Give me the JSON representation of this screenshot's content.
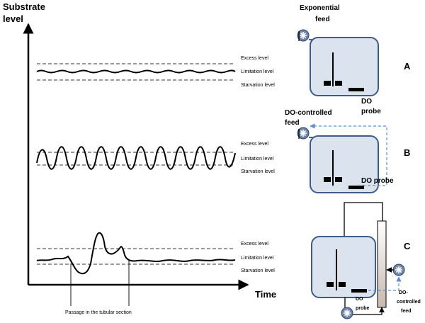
{
  "axes": {
    "y_label_line1": "Substrate",
    "y_label_line2": "level",
    "x_label": "Time",
    "passage_label": "Passage in the tubular section"
  },
  "levels": {
    "excess": "Excess level",
    "limitation": "Limitation level",
    "starvation": "Starvation level"
  },
  "panels": {
    "a": {
      "letter": "A",
      "feed_line1": "Exponential",
      "feed_line2": "feed",
      "probe_line1": "DO",
      "probe_line2": "probe"
    },
    "b": {
      "letter": "B",
      "feed_line1": "DO-controlled",
      "feed_line2": "feed",
      "probe": "DO probe"
    },
    "c": {
      "letter": "C",
      "probe_line1": "DO",
      "probe_line2": "probe",
      "feed_line1": "DO-",
      "feed_line2": "controlled",
      "feed_line3": "feed"
    }
  },
  "colors": {
    "vessel_fill": "#dbe3ee",
    "vessel_stroke": "#3b5c8c",
    "control_dashed": "#5b8fd1",
    "pump_fill": "#6f86a8"
  }
}
